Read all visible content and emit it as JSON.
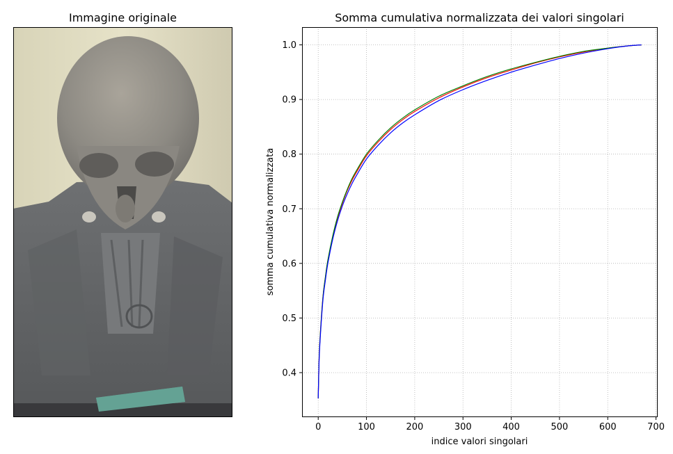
{
  "left_panel": {
    "title": "Immagine originale",
    "image_subject": "grey stone bust of a skull-like figure on a teal base"
  },
  "colors": {
    "red": "#ff0000",
    "green": "#008000",
    "blue": "#0000ff",
    "grid": "#b0b0b0"
  },
  "chart_data": {
    "type": "line",
    "title": "Somma cumulativa normalizzata dei valori singolari",
    "xlabel": "indice valori singolari",
    "ylabel": "somma cumulativa normalizzata",
    "xlim": [
      -33.5,
      703.5
    ],
    "ylim": [
      0.3185,
      1.0325
    ],
    "xticks": [
      0,
      100,
      200,
      300,
      400,
      500,
      600,
      700
    ],
    "yticks": [
      0.4,
      0.5,
      0.6,
      0.7,
      0.8,
      0.9,
      1.0
    ],
    "xtick_labels": [
      "0",
      "100",
      "200",
      "300",
      "400",
      "500",
      "600",
      "700"
    ],
    "ytick_labels": [
      "0.4",
      "0.5",
      "0.6",
      "0.7",
      "0.8",
      "0.9",
      "1.0"
    ],
    "grid": true,
    "grid_style": "dotted",
    "legend": "none",
    "x": [
      0,
      2,
      5,
      10,
      15,
      20,
      30,
      40,
      50,
      60,
      70,
      80,
      100,
      125,
      150,
      175,
      200,
      250,
      300,
      350,
      400,
      450,
      500,
      550,
      600,
      640,
      670
    ],
    "series": [
      {
        "color": "#ff0000",
        "values": [
          0.353,
          0.43,
          0.48,
          0.54,
          0.575,
          0.605,
          0.648,
          0.683,
          0.71,
          0.733,
          0.752,
          0.768,
          0.797,
          0.823,
          0.845,
          0.863,
          0.878,
          0.903,
          0.923,
          0.94,
          0.954,
          0.967,
          0.978,
          0.987,
          0.994,
          0.998,
          1.0
        ]
      },
      {
        "color": "#008000",
        "values": [
          0.353,
          0.43,
          0.48,
          0.54,
          0.576,
          0.606,
          0.65,
          0.685,
          0.712,
          0.735,
          0.755,
          0.771,
          0.8,
          0.826,
          0.848,
          0.866,
          0.881,
          0.906,
          0.925,
          0.942,
          0.956,
          0.968,
          0.979,
          0.988,
          0.994,
          0.998,
          1.0
        ]
      },
      {
        "color": "#0000ff",
        "values": [
          0.353,
          0.425,
          0.475,
          0.535,
          0.57,
          0.6,
          0.644,
          0.678,
          0.705,
          0.727,
          0.746,
          0.762,
          0.791,
          0.817,
          0.839,
          0.857,
          0.872,
          0.898,
          0.918,
          0.935,
          0.95,
          0.963,
          0.975,
          0.985,
          0.993,
          0.998,
          1.0
        ]
      }
    ]
  }
}
